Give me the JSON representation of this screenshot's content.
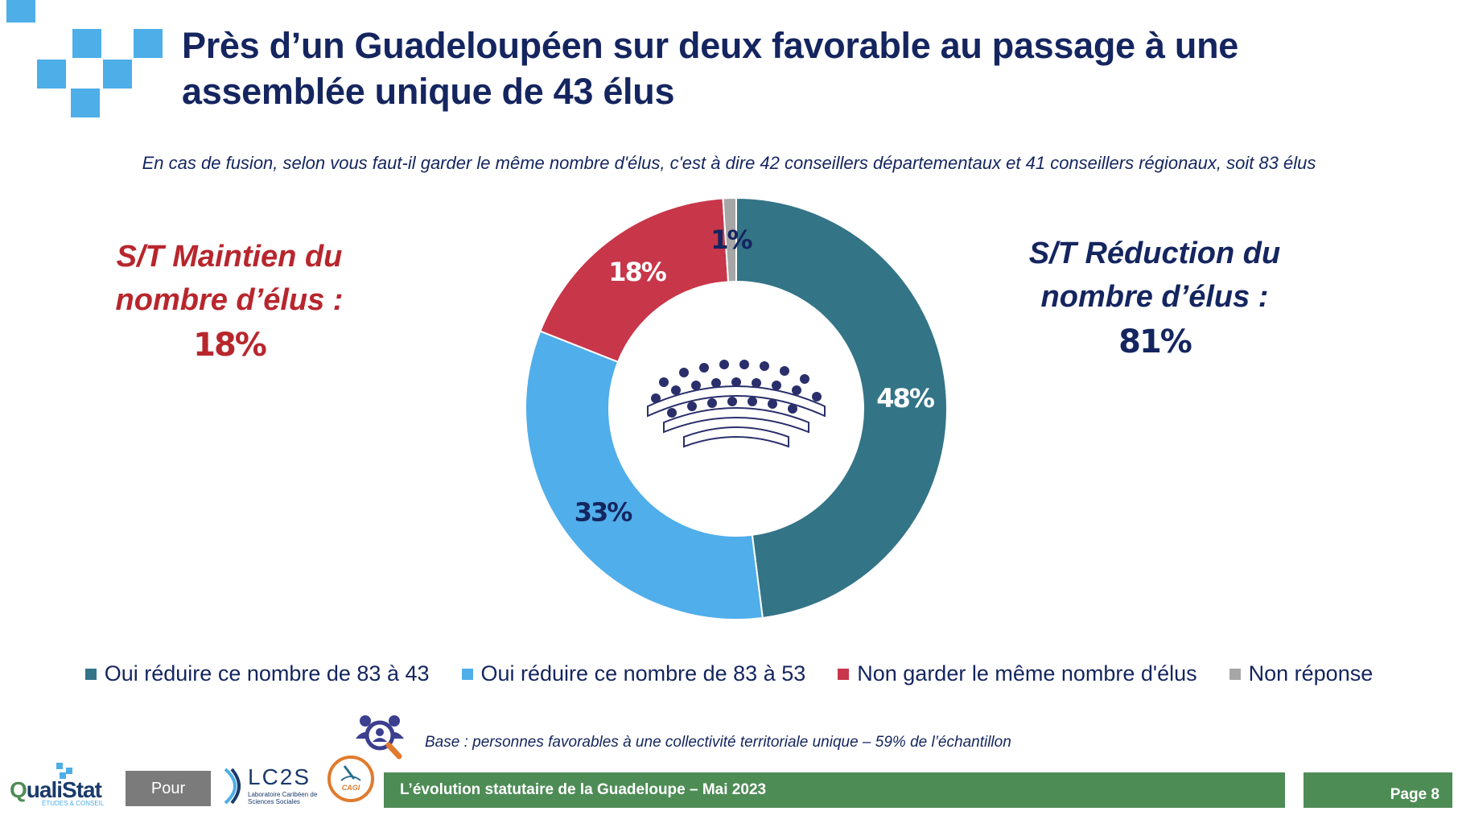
{
  "title": "Près d’un Guadeloupéen sur deux favorable au passage à une assemblée unique de 43 élus",
  "question": "En cas de fusion, selon vous faut-il garder le même nombre d'élus, c'est à dire 42 conseillers départementaux et 41 conseillers régionaux, soit 83 élus",
  "summary_left": {
    "label_line1": "S/T Maintien du",
    "label_line2": "nombre d’élus :",
    "value": "18%"
  },
  "summary_right": {
    "label_line1": "S/T Réduction du",
    "label_line2": "nombre d’élus :",
    "value": "81%"
  },
  "chart_data": {
    "type": "pie",
    "donut": true,
    "start": "top",
    "direction": "clockwise",
    "slices": [
      {
        "label": "Oui réduire ce nombre de 83 à 43",
        "value": 48,
        "display": "48%",
        "color": "#337487",
        "text_color": "#ffffff"
      },
      {
        "label": "Oui réduire ce nombre de 83 à 53",
        "value": 33,
        "display": "33%",
        "color": "#50aeea",
        "text_color": "#14255f"
      },
      {
        "label": "Non garder le même nombre d'élus",
        "value": 18,
        "display": "18%",
        "color": "#c8364a",
        "text_color": "#ffffff"
      },
      {
        "label": "Non réponse",
        "value": 1,
        "display": "1%",
        "color": "#a6a6a6",
        "text_color": "#14255f"
      }
    ],
    "legend_position": "bottom"
  },
  "base_note": "Base : personnes favorables à une collectivité territoriale unique – 59% de l’échantillon",
  "footer": {
    "pour": "Pour",
    "study_title": "L’évolution statutaire de la Guadeloupe – Mai 2023",
    "page": "Page 8",
    "qualistat_q": "Q",
    "qualistat_rest": "ualiStat",
    "qualistat_tagline": "ÉTUDES & CONSEIL",
    "lc2s_name": "LC2S",
    "lc2s_sub": "Laboratoire Caribéen de Sciences Sociales",
    "cagi_name": "CAGI"
  },
  "icons": {
    "deco": "decorative-squares",
    "center": "assembly-hemicycle-icon",
    "base": "search-people-icon"
  },
  "colors": {
    "title": "#14255f",
    "maintain": "#b8262d",
    "reduce": "#14255f",
    "footer": "#4e8c56",
    "accent": "#4daee8"
  }
}
